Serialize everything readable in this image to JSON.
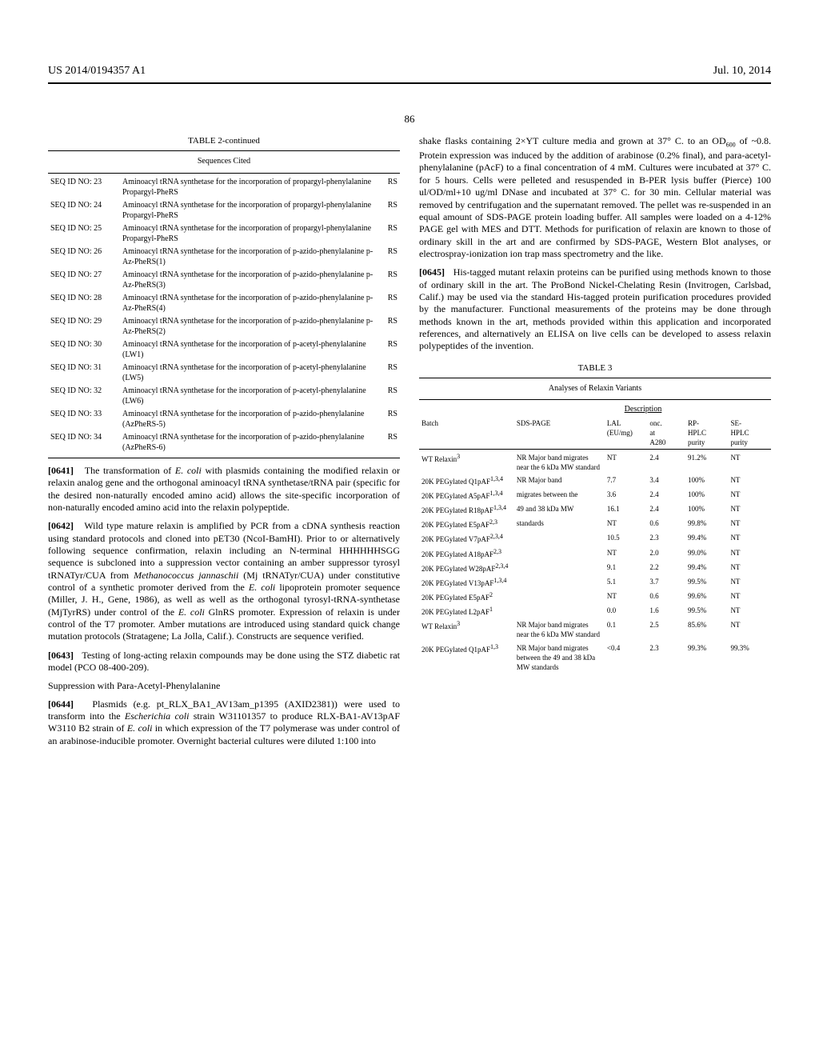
{
  "header": {
    "left": "US 2014/0194357 A1",
    "right": "Jul. 10, 2014"
  },
  "pageNumber": "86",
  "table2": {
    "title": "TABLE 2-continued",
    "subtitle": "Sequences Cited",
    "rows": [
      {
        "id": "SEQ ID NO: 23",
        "desc": "Aminoacyl tRNA synthetase for the incorporation of propargyl-phenylalanine Propargyl-PheRS",
        "tag": "RS"
      },
      {
        "id": "SEQ ID NO: 24",
        "desc": "Aminoacyl tRNA synthetase for the incorporation of propargyl-phenylalanine Propargyl-PheRS",
        "tag": "RS"
      },
      {
        "id": "SEQ ID NO: 25",
        "desc": "Aminoacyl tRNA synthetase for the incorporation of propargyl-phenylalanine Propargyl-PheRS",
        "tag": "RS"
      },
      {
        "id": "SEQ ID NO: 26",
        "desc": "Aminoacyl tRNA synthetase for the incorporation of p-azido-phenylalanine p-Az-PheRS(1)",
        "tag": "RS"
      },
      {
        "id": "SEQ ID NO: 27",
        "desc": "Aminoacyl tRNA synthetase for the incorporation of p-azido-phenylalanine p-Az-PheRS(3)",
        "tag": "RS"
      },
      {
        "id": "SEQ ID NO: 28",
        "desc": "Aminoacyl tRNA synthetase for the incorporation of p-azido-phenylalanine p-Az-PheRS(4)",
        "tag": "RS"
      },
      {
        "id": "SEQ ID NO: 29",
        "desc": "Aminoacyl tRNA synthetase for the incorporation of p-azido-phenylalanine p-Az-PheRS(2)",
        "tag": "RS"
      },
      {
        "id": "SEQ ID NO: 30",
        "desc": "Aminoacyl tRNA synthetase for the incorporation of p-acetyl-phenylalanine (LW1)",
        "tag": "RS"
      },
      {
        "id": "SEQ ID NO: 31",
        "desc": "Aminoacyl tRNA synthetase for the incorporation of p-acetyl-phenylalanine (LW5)",
        "tag": "RS"
      },
      {
        "id": "SEQ ID NO: 32",
        "desc": "Aminoacyl tRNA synthetase for the incorporation of p-acetyl-phenylalanine (LW6)",
        "tag": "RS"
      },
      {
        "id": "SEQ ID NO: 33",
        "desc": "Aminoacyl tRNA synthetase for the incorporation of p-azido-phenylalanine (AzPheRS-5)",
        "tag": "RS"
      },
      {
        "id": "SEQ ID NO: 34",
        "desc": "Aminoacyl tRNA synthetase for the incorporation of p-azido-phenylalanine (AzPheRS-6)",
        "tag": "RS"
      }
    ]
  },
  "paragraphs": {
    "p0641": "The transformation of E. coli with plasmids containing the modified relaxin or relaxin analog gene and the orthogonal aminoacyl tRNA synthetase/tRNA pair (specific for the desired non-naturally encoded amino acid) allows the site-specific incorporation of non-naturally encoded amino acid into the relaxin polypeptide.",
    "p0642": "Wild type mature relaxin is amplified by PCR from a cDNA synthesis reaction using standard protocols and cloned into pET30 (NcoI-BamHI). Prior to or alternatively following sequence confirmation, relaxin including an N-terminal HHHHHHSGG sequence is subcloned into a suppression vector containing an amber suppressor tyrosyl tRNATyr/CUA from Methanococcus jannaschii (Mj tRNATyr/CUA) under constitutive control of a synthetic promoter derived from the E. coli lipoprotein promoter sequence (Miller, J. H., Gene, 1986), as well as well as the orthogonal tyrosyl-tRNA-synthetase (MjTyrRS) under control of the E. coli GlnRS promoter. Expression of relaxin is under control of the T7 promoter. Amber mutations are introduced using standard quick change mutation protocols (Stratagene; La Jolla, Calif.). Constructs are sequence verified.",
    "p0643": "Testing of long-acting relaxin compounds may be done using the STZ diabetic rat model (PCO 08-400-209).",
    "subhead": "Suppression with Para-Acetyl-Phenylalanine",
    "p0644a": "Plasmids (e.g. pt_RLX_BA1_AV13am_p1395 (AXID2381)) were used to transform into the Escherichia coli strain W31101357 to produce RLX-BA1-AV13pAF W3110 B2 strain of E. coli in which expression of the T7 polymerase was under control of an arabinose-inducible promoter. Overnight bacterial cultures were diluted 1:100 into",
    "p0644b": "shake flasks containing 2×YT culture media and grown at 37° C. to an OD600 of ~0.8. Protein expression was induced by the addition of arabinose (0.2% final), and para-acetyl-phenylalanine (pAcF) to a final concentration of 4 mM. Cultures were incubated at 37° C. for 5 hours. Cells were pelleted and resuspended in B-PER lysis buffer (Pierce) 100 ul/OD/ml+10 ug/ml DNase and incubated at 37° C. for 30 min. Cellular material was removed by centrifugation and the supernatant removed. The pellet was re-suspended in an equal amount of SDS-PAGE protein loading buffer. All samples were loaded on a 4-12% PAGE gel with MES and DTT. Methods for purification of relaxin are known to those of ordinary skill in the art and are confirmed by SDS-PAGE, Western Blot analyses, or electrospray-ionization ion trap mass spectrometry and the like.",
    "p0645": "His-tagged mutant relaxin proteins can be purified using methods known to those of ordinary skill in the art. The ProBond Nickel-Chelating Resin (Invitrogen, Carlsbad, Calif.) may be used via the standard His-tagged protein purification procedures provided by the manufacturer. Functional measurements of the proteins may be done through methods known in the art, methods provided within this application and incorporated references, and alternatively an ELISA on live cells can be developed to assess relaxin polypeptides of the invention."
  },
  "table3": {
    "title": "TABLE 3",
    "subtitle": "Analyses of Relaxin Variants",
    "descHeader": "Description",
    "headers": [
      "Batch",
      "SDS-PAGE",
      "LAL (EU/mg)",
      "onc. at A280",
      "RP-HPLC purity",
      "SE-HPLC purity"
    ],
    "rows": [
      {
        "batch": "WT Relaxin",
        "sup": "3",
        "sds": "NR Major band migrates near the 6 kDa MW standard",
        "lal": "NT",
        "onc": "2.4",
        "rp": "91.2%",
        "se": "NT"
      },
      {
        "batch": "20K PEGylated Q1pAF",
        "sup": "1,3,4",
        "sds": "NR Major band",
        "lal": "7.7",
        "onc": "3.4",
        "rp": "100%",
        "se": "NT"
      },
      {
        "batch": "20K PEGylated A5pAF",
        "sup": "1,3,4",
        "sds": "migrates between the",
        "lal": "3.6",
        "onc": "2.4",
        "rp": "100%",
        "se": "NT"
      },
      {
        "batch": "20K PEGylated R18pAF",
        "sup": "1,3,4",
        "sds": "49 and 38 kDa MW",
        "lal": "16.1",
        "onc": "2.4",
        "rp": "100%",
        "se": "NT"
      },
      {
        "batch": "20K PEGylated E5pAF",
        "sup": "2,3",
        "sds": "standards",
        "lal": "NT",
        "onc": "0.6",
        "rp": "99.8%",
        "se": "NT"
      },
      {
        "batch": "20K PEGylated V7pAF",
        "sup": "2,3,4",
        "sds": "",
        "lal": "10.5",
        "onc": "2.3",
        "rp": "99.4%",
        "se": "NT"
      },
      {
        "batch": "20K PEGylated A18pAF",
        "sup": "2,3",
        "sds": "",
        "lal": "NT",
        "onc": "2.0",
        "rp": "99.0%",
        "se": "NT"
      },
      {
        "batch": "20K PEGylated W28pAF",
        "sup": "2,3,4",
        "sds": "",
        "lal": "9.1",
        "onc": "2.2",
        "rp": "99.4%",
        "se": "NT"
      },
      {
        "batch": "20K PEGylated V13pAF",
        "sup": "1,3,4",
        "sds": "",
        "lal": "5.1",
        "onc": "3.7",
        "rp": "99.5%",
        "se": "NT"
      },
      {
        "batch": "20K PEGylated E5pAF",
        "sup": "2",
        "sds": "",
        "lal": "NT",
        "onc": "0.6",
        "rp": "99.6%",
        "se": "NT"
      },
      {
        "batch": "20K PEGylated L2pAF",
        "sup": "1",
        "sds": "",
        "lal": "0.0",
        "onc": "1.6",
        "rp": "99.5%",
        "se": "NT"
      },
      {
        "batch": "WT Relaxin",
        "sup": "3",
        "sds": "NR Major band migrates near the 6 kDa MW standard",
        "lal": "0.1",
        "onc": "2.5",
        "rp": "85.6%",
        "se": "NT"
      },
      {
        "batch": "20K PEGylated Q1pAF",
        "sup": "1,3",
        "sds": "NR Major band migrates between the 49 and 38 kDa MW standards",
        "lal": "<0.4",
        "onc": "2.3",
        "rp": "99.3%",
        "se": "99.3%"
      }
    ]
  }
}
